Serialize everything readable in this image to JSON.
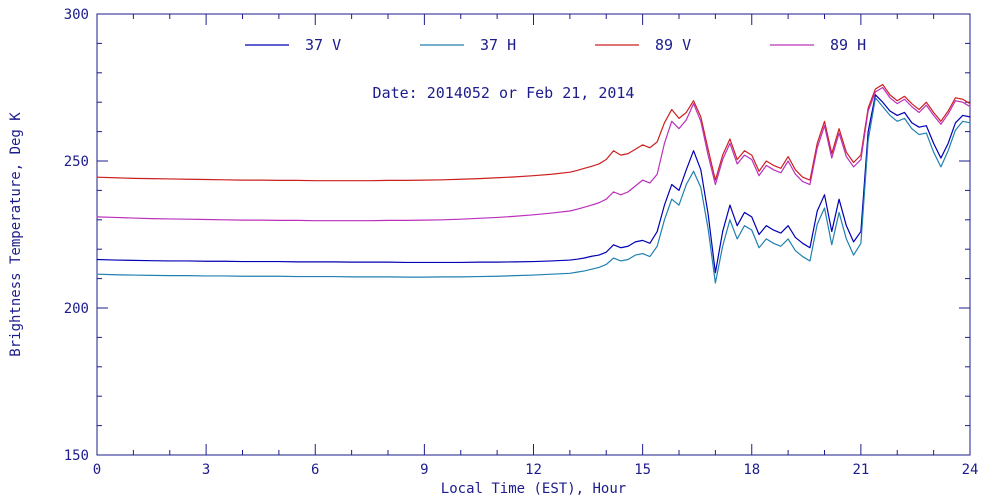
{
  "chart_data": {
    "type": "line",
    "title": "Date: 2014052   or   Feb 21, 2014",
    "xlabel": "Local Time (EST), Hour",
    "ylabel": "Brightness Temperature, Deg K",
    "xlim": [
      0,
      24
    ],
    "ylim": [
      150,
      300
    ],
    "xticks": [
      0,
      3,
      6,
      9,
      12,
      15,
      18,
      21,
      24
    ],
    "yticks": [
      150,
      200,
      250,
      300
    ],
    "x_minor_step": 1,
    "y_minor_step": 10,
    "grid": false,
    "legend_position": "top-inside",
    "axis_color": "#1c1c8c",
    "background": "#ffffff",
    "x": [
      0,
      0.5,
      1,
      1.5,
      2,
      2.5,
      3,
      3.5,
      4,
      4.5,
      5,
      5.5,
      6,
      6.5,
      7,
      7.5,
      8,
      8.5,
      9,
      9.5,
      10,
      10.5,
      11,
      11.5,
      12,
      12.5,
      13,
      13.2,
      13.4,
      13.6,
      13.8,
      14,
      14.2,
      14.4,
      14.6,
      14.8,
      15,
      15.2,
      15.4,
      15.6,
      15.8,
      16,
      16.2,
      16.4,
      16.6,
      16.8,
      17,
      17.2,
      17.4,
      17.6,
      17.8,
      18,
      18.2,
      18.4,
      18.6,
      18.8,
      19,
      19.2,
      19.4,
      19.6,
      19.8,
      20,
      20.2,
      20.4,
      20.6,
      20.8,
      21,
      21.2,
      21.4,
      21.6,
      21.8,
      22,
      22.2,
      22.4,
      22.6,
      22.8,
      23,
      23.2,
      23.4,
      23.6,
      23.8,
      24
    ],
    "series": [
      {
        "name": "37 V",
        "color": "#0000b4",
        "values": [
          216.5,
          216.3,
          216.2,
          216.1,
          216.0,
          216.0,
          215.9,
          215.9,
          215.8,
          215.8,
          215.8,
          215.7,
          215.7,
          215.7,
          215.6,
          215.6,
          215.6,
          215.5,
          215.5,
          215.5,
          215.5,
          215.6,
          215.6,
          215.7,
          215.8,
          216.0,
          216.3,
          216.6,
          217.0,
          217.6,
          218.0,
          219.0,
          221.5,
          220.5,
          221.0,
          222.5,
          223.0,
          222.0,
          226.0,
          235.0,
          242.0,
          240.0,
          247.0,
          253.5,
          247.0,
          232.0,
          212.0,
          226.0,
          235.0,
          228.0,
          232.5,
          231.0,
          225.0,
          228.0,
          226.5,
          225.5,
          228.0,
          224.0,
          222.0,
          220.5,
          233.0,
          238.5,
          226.0,
          237.0,
          228.0,
          222.5,
          226.0,
          260.0,
          272.5,
          270.0,
          267.0,
          265.5,
          266.5,
          263.0,
          261.5,
          262.0,
          256.0,
          251.0,
          256.0,
          263.0,
          265.5,
          265.0
        ]
      },
      {
        "name": "37 H",
        "color": "#2080b0",
        "values": [
          211.5,
          211.3,
          211.2,
          211.1,
          211.0,
          211.0,
          210.9,
          210.9,
          210.8,
          210.8,
          210.8,
          210.7,
          210.7,
          210.7,
          210.6,
          210.6,
          210.6,
          210.5,
          210.5,
          210.6,
          210.6,
          210.7,
          210.8,
          211.0,
          211.2,
          211.5,
          211.8,
          212.2,
          212.6,
          213.2,
          213.8,
          214.8,
          217.0,
          216.0,
          216.5,
          218.0,
          218.5,
          217.5,
          221.0,
          230.0,
          237.0,
          235.0,
          242.0,
          246.5,
          241.0,
          227.0,
          208.5,
          221.0,
          230.0,
          223.5,
          228.0,
          226.5,
          220.5,
          223.5,
          222.0,
          221.0,
          223.5,
          219.5,
          217.5,
          216.0,
          228.5,
          234.0,
          221.5,
          232.5,
          223.5,
          218.0,
          222.0,
          257.0,
          271.5,
          268.5,
          265.5,
          263.5,
          264.5,
          261.0,
          259.0,
          259.5,
          253.0,
          248.0,
          253.5,
          260.5,
          263.5,
          263.0
        ]
      },
      {
        "name": "89 V",
        "color": "#cc2020",
        "values": [
          244.5,
          244.3,
          244.1,
          244.0,
          243.9,
          243.8,
          243.7,
          243.6,
          243.5,
          243.5,
          243.4,
          243.4,
          243.3,
          243.3,
          243.3,
          243.3,
          243.4,
          243.4,
          243.5,
          243.6,
          243.8,
          244.0,
          244.3,
          244.6,
          245.0,
          245.5,
          246.2,
          246.8,
          247.5,
          248.2,
          249.0,
          250.5,
          253.5,
          252.0,
          252.5,
          254.0,
          255.5,
          254.5,
          256.5,
          263.0,
          267.5,
          264.5,
          266.5,
          270.5,
          265.0,
          254.0,
          243.5,
          252.0,
          257.5,
          250.5,
          253.5,
          252.0,
          246.5,
          250.0,
          248.5,
          247.5,
          251.5,
          247.0,
          244.5,
          243.5,
          256.0,
          263.5,
          252.5,
          261.0,
          253.0,
          249.5,
          252.0,
          268.0,
          274.5,
          276.0,
          272.5,
          270.5,
          272.0,
          269.5,
          267.5,
          270.0,
          266.5,
          263.5,
          267.0,
          271.5,
          271.0,
          269.5
        ]
      },
      {
        "name": "89 H",
        "color": "#bb30bb",
        "values": [
          231.0,
          230.8,
          230.6,
          230.4,
          230.3,
          230.2,
          230.1,
          230.0,
          229.9,
          229.9,
          229.8,
          229.8,
          229.7,
          229.7,
          229.7,
          229.7,
          229.8,
          229.8,
          229.9,
          230.0,
          230.2,
          230.5,
          230.8,
          231.2,
          231.7,
          232.3,
          233.0,
          233.6,
          234.3,
          235.0,
          235.8,
          237.0,
          239.5,
          238.5,
          239.5,
          241.5,
          243.5,
          242.5,
          245.5,
          256.0,
          263.5,
          261.0,
          264.0,
          269.5,
          263.5,
          252.0,
          242.0,
          250.5,
          256.0,
          249.0,
          252.0,
          250.5,
          245.0,
          248.5,
          247.0,
          246.0,
          250.0,
          245.5,
          243.0,
          242.0,
          254.5,
          262.0,
          251.0,
          259.5,
          251.5,
          248.0,
          250.5,
          267.0,
          273.5,
          275.0,
          271.5,
          269.5,
          271.0,
          268.5,
          266.5,
          269.0,
          265.5,
          262.5,
          266.0,
          270.5,
          270.0,
          268.5
        ]
      }
    ]
  }
}
